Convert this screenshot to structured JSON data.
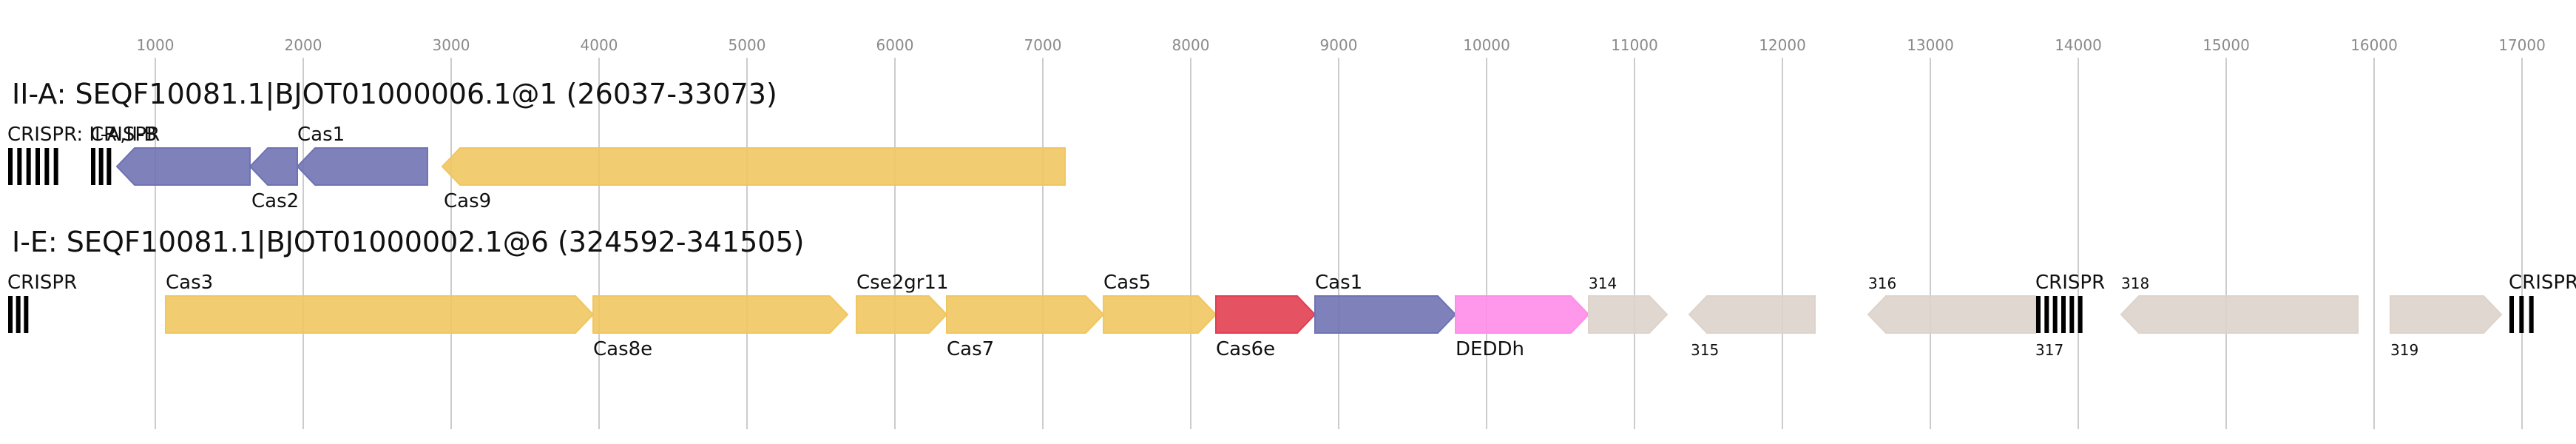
{
  "ruler": {
    "ticks": [
      1000,
      2000,
      3000,
      4000,
      5000,
      6000,
      7000,
      8000,
      9000,
      10000,
      11000,
      12000,
      13000,
      14000,
      15000,
      16000,
      17000
    ],
    "tick_labels": [
      "1000",
      "2000",
      "3000",
      "4000",
      "5000",
      "6000",
      "7000",
      "8000",
      "9000",
      "10000",
      "11000",
      "12000",
      "13000",
      "14000",
      "15000",
      "16000",
      "17000"
    ]
  },
  "colors": {
    "cas_core": "#7073b3",
    "cas_yellow": "#f0c660",
    "cas6e": "#e23f51",
    "deddh": "#ff8de8",
    "other": "#ddd3cb",
    "crispr": "#000000",
    "gridline": "#cccccc"
  },
  "loci": [
    {
      "title": "II-A: SEQF10081.1|BJOT01000006.1@1 (26037-33073)",
      "features": [
        {
          "kind": "crispr",
          "start": 0,
          "end": 370,
          "label": "CRISPR: II-A,II-B",
          "label_pos": "above"
        },
        {
          "kind": "crispr",
          "start": 560,
          "end": 720,
          "label": "CRISPR",
          "label_pos": "above"
        },
        {
          "kind": "gene",
          "start": 740,
          "end": 1640,
          "strand": -1,
          "color": "cas_core",
          "label": "",
          "label_pos": "above"
        },
        {
          "kind": "gene",
          "start": 1640,
          "end": 1960,
          "strand": -1,
          "color": "cas_core",
          "label": "Cas2",
          "label_pos": "below"
        },
        {
          "kind": "gene",
          "start": 1960,
          "end": 2840,
          "strand": -1,
          "color": "cas_core",
          "label": "Cas1",
          "label_pos": "above"
        },
        {
          "kind": "gene",
          "start": 2940,
          "end": 7150,
          "strand": -1,
          "color": "cas_yellow",
          "label": "Cas9",
          "label_pos": "below"
        }
      ]
    },
    {
      "title": "I-E: SEQF10081.1|BJOT01000002.1@6 (324592-341505)",
      "features": [
        {
          "kind": "crispr",
          "start": 0,
          "end": 160,
          "label": "CRISPR",
          "label_pos": "above"
        },
        {
          "kind": "gene",
          "start": 1070,
          "end": 3960,
          "strand": 1,
          "color": "cas_yellow",
          "label": "Cas3",
          "label_pos": "above"
        },
        {
          "kind": "gene",
          "start": 3960,
          "end": 5680,
          "strand": 1,
          "color": "cas_yellow",
          "label": "Cas8e",
          "label_pos": "below"
        },
        {
          "kind": "gene",
          "start": 5740,
          "end": 6350,
          "strand": 1,
          "color": "cas_yellow",
          "label": "Cse2gr11",
          "label_pos": "above"
        },
        {
          "kind": "gene",
          "start": 6350,
          "end": 7410,
          "strand": 1,
          "color": "cas_yellow",
          "label": "Cas7",
          "label_pos": "below"
        },
        {
          "kind": "gene",
          "start": 7410,
          "end": 8170,
          "strand": 1,
          "color": "cas_yellow",
          "label": "Cas5",
          "label_pos": "above"
        },
        {
          "kind": "gene",
          "start": 8170,
          "end": 8840,
          "strand": 1,
          "color": "cas6e",
          "label": "Cas6e",
          "label_pos": "below"
        },
        {
          "kind": "gene",
          "start": 8840,
          "end": 9790,
          "strand": 1,
          "color": "cas_core",
          "label": "Cas1",
          "label_pos": "above"
        },
        {
          "kind": "gene",
          "start": 9790,
          "end": 10690,
          "strand": 1,
          "color": "deddh",
          "label": "DEDDh",
          "label_pos": "below"
        },
        {
          "kind": "gene",
          "start": 10690,
          "end": 11220,
          "strand": 1,
          "color": "other",
          "label": "314",
          "label_pos": "above",
          "small": true
        },
        {
          "kind": "gene",
          "start": 11370,
          "end": 12220,
          "strand": -1,
          "color": "other",
          "label": "315",
          "label_pos": "below",
          "small": true
        },
        {
          "kind": "gene",
          "start": 12580,
          "end": 13710,
          "strand": -1,
          "color": "other",
          "label": "316",
          "label_pos": "above",
          "small": true
        },
        {
          "kind": "crispr",
          "start": 13710,
          "end": 14050,
          "label": "CRISPR",
          "label_pos": "above"
        },
        {
          "kind": "crispr_label",
          "start": 13710,
          "end": 14050,
          "label": "317",
          "label_pos": "below",
          "small": true
        },
        {
          "kind": "gene",
          "start": 14290,
          "end": 15890,
          "strand": -1,
          "color": "other",
          "label": "318",
          "label_pos": "above",
          "small": true
        },
        {
          "kind": "gene",
          "start": 16110,
          "end": 16860,
          "strand": 1,
          "color": "other",
          "label": "319",
          "label_pos": "below",
          "small": true
        },
        {
          "kind": "crispr",
          "start": 16910,
          "end": 17110,
          "label": "CRISPR",
          "label_pos": "above"
        }
      ]
    }
  ]
}
